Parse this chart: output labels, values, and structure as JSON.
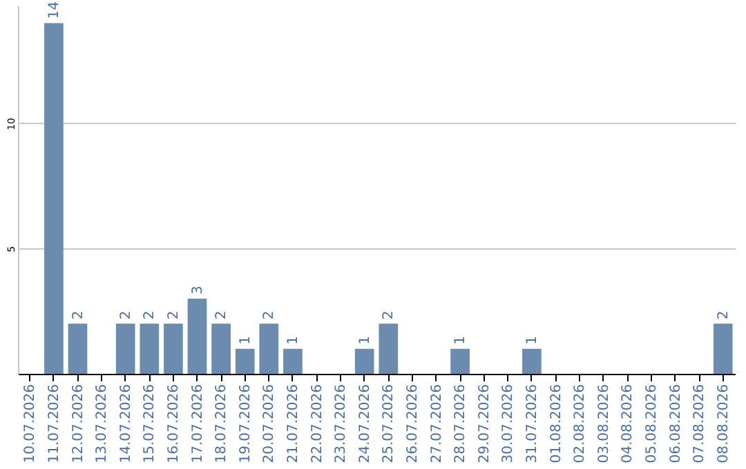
{
  "chart_data": {
    "type": "bar",
    "categories": [
      "10.07.2026",
      "11.07.2026",
      "12.07.2026",
      "13.07.2026",
      "14.07.2026",
      "15.07.2026",
      "16.07.2026",
      "17.07.2026",
      "18.07.2026",
      "19.07.2026",
      "20.07.2026",
      "21.07.2026",
      "22.07.2026",
      "23.07.2026",
      "24.07.2026",
      "25.07.2026",
      "26.07.2026",
      "27.07.2026",
      "28.07.2026",
      "29.07.2026",
      "30.07.2026",
      "31.07.2026",
      "01.08.2026",
      "02.08.2026",
      "03.08.2026",
      "04.08.2026",
      "05.08.2026",
      "06.08.2026",
      "07.08.2026",
      "08.08.2026"
    ],
    "values": [
      0,
      14,
      2,
      0,
      2,
      2,
      2,
      3,
      2,
      1,
      2,
      1,
      0,
      0,
      1,
      2,
      0,
      0,
      1,
      0,
      0,
      1,
      0,
      0,
      0,
      0,
      0,
      0,
      0,
      2
    ],
    "value_labels": [
      null,
      "14",
      "2",
      null,
      "2",
      "2",
      "2",
      "3",
      "2",
      "1",
      "2",
      "1",
      null,
      null,
      "1",
      "2",
      null,
      null,
      "1",
      null,
      null,
      "1",
      null,
      null,
      null,
      null,
      null,
      null,
      null,
      "2"
    ],
    "color": "#6b8cae",
    "ylim": [
      0,
      14.7
    ],
    "yticks": [
      5,
      10
    ],
    "grid": "y"
  }
}
